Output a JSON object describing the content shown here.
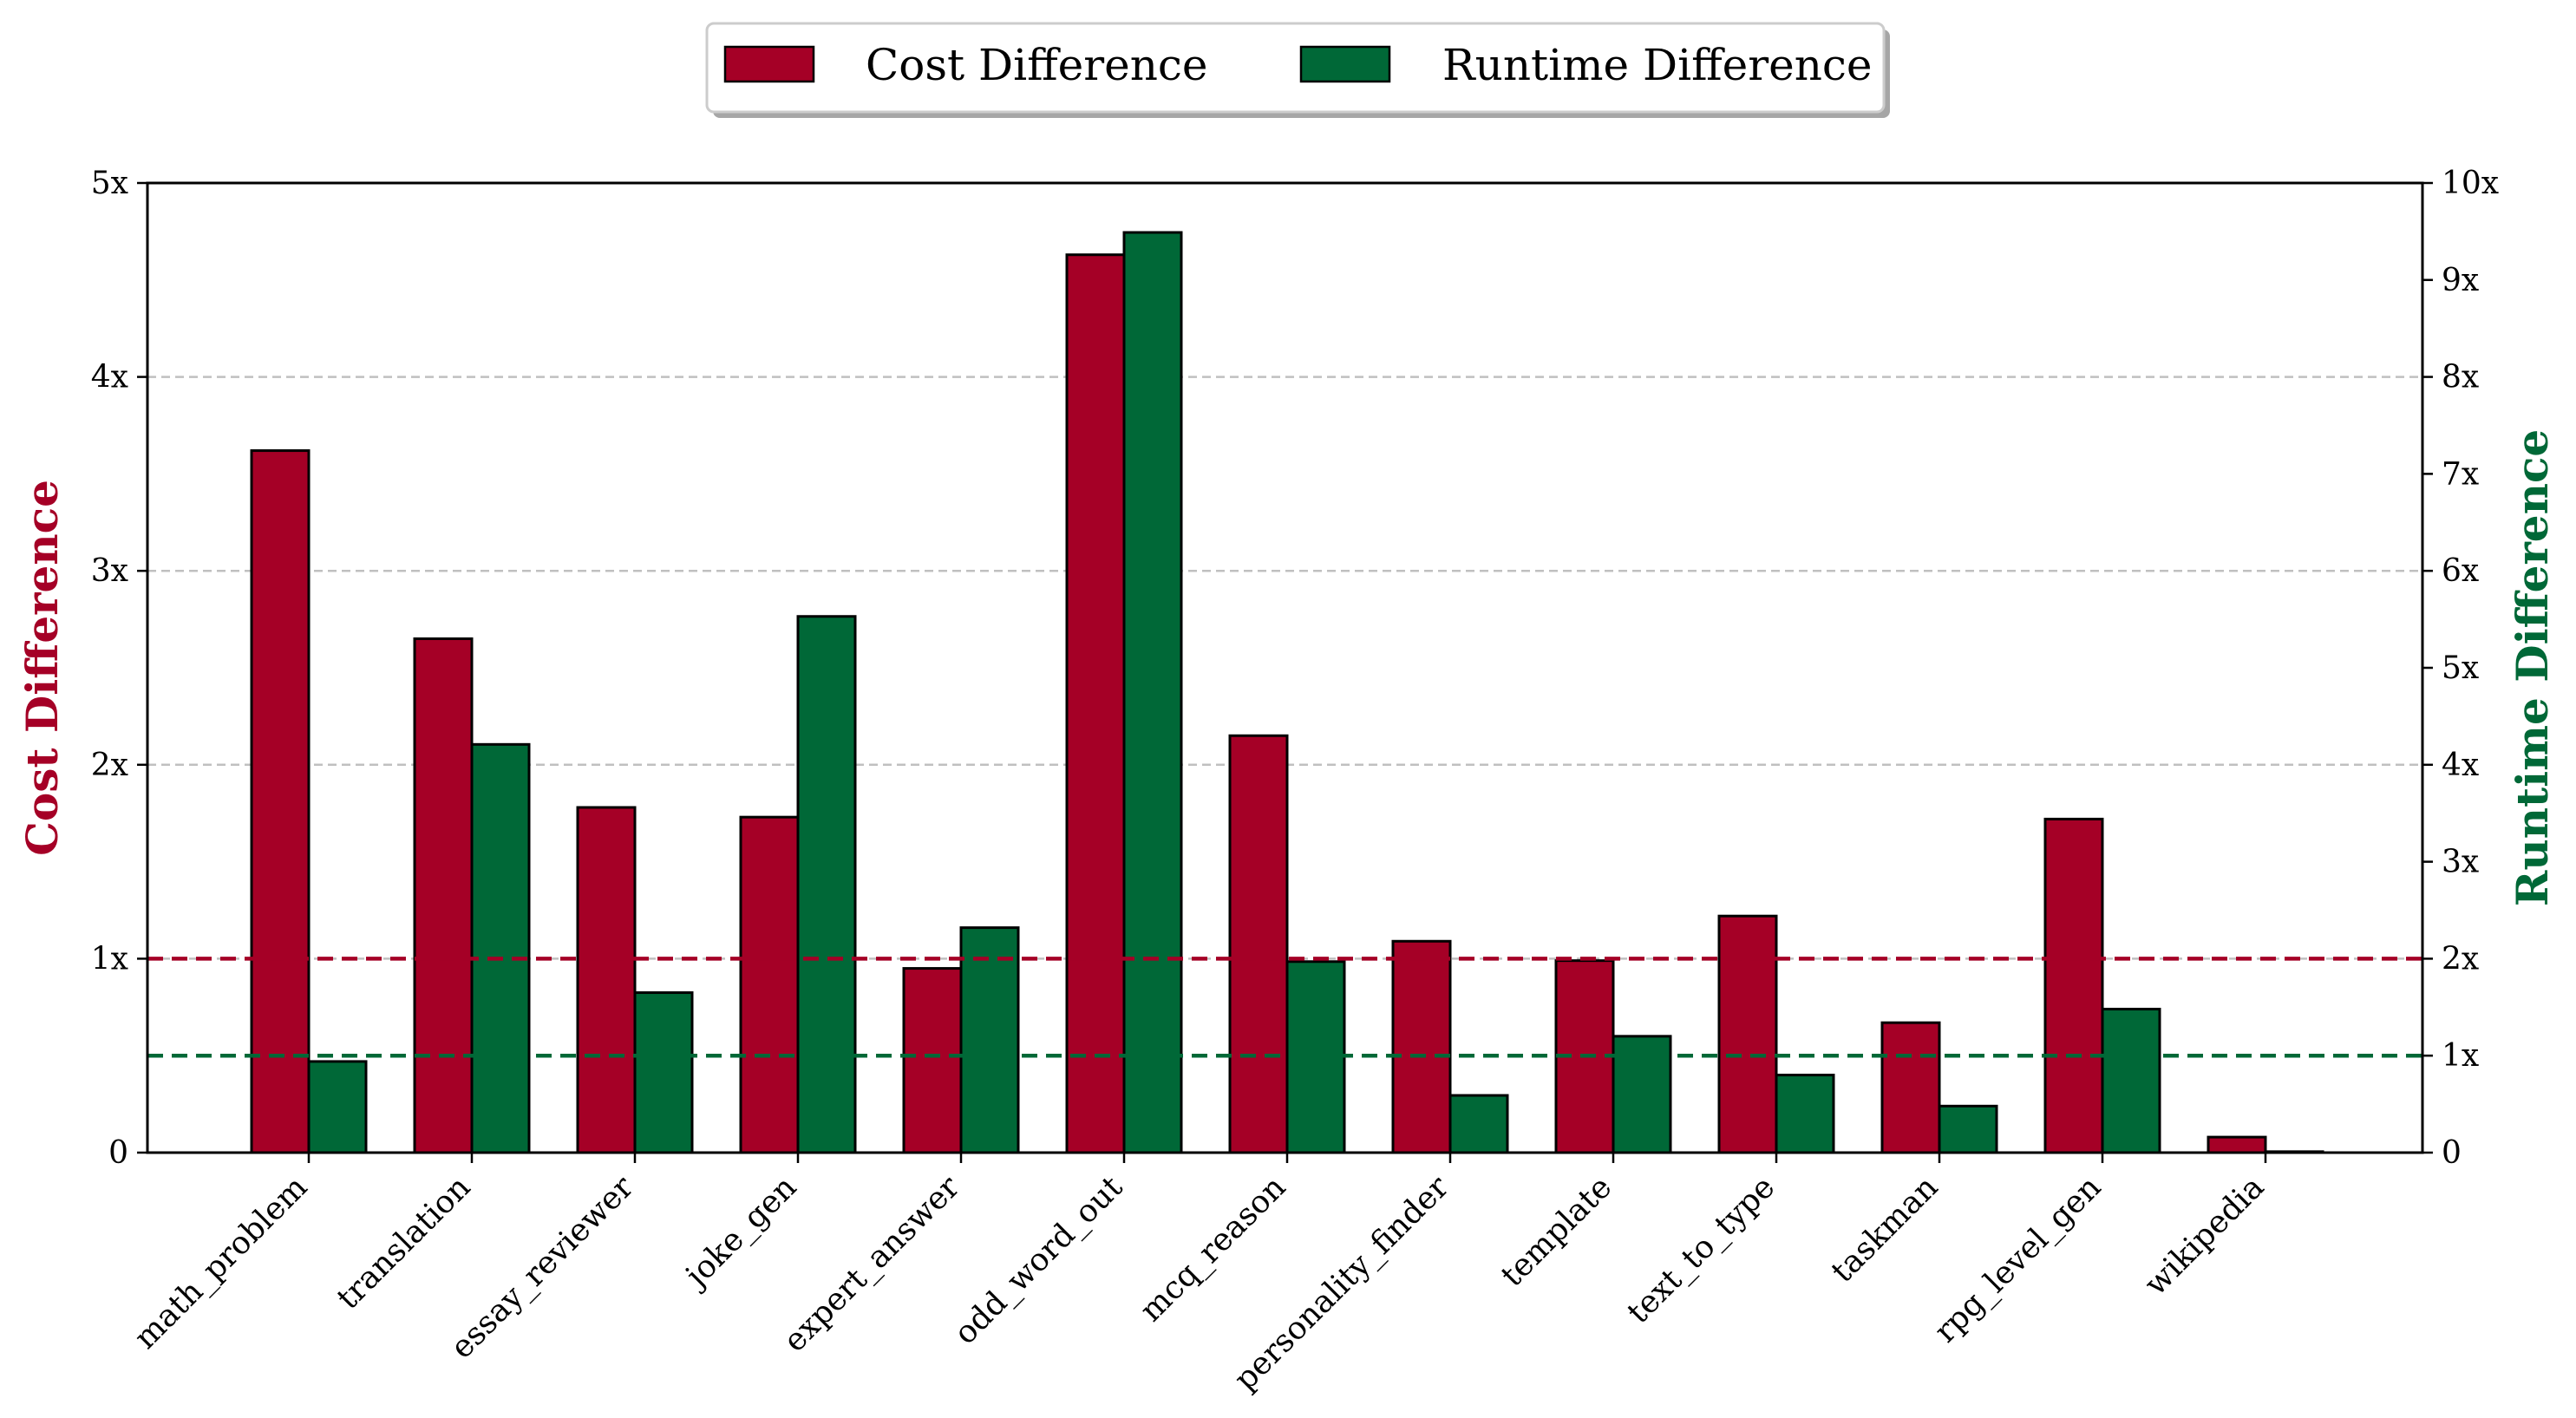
{
  "chart_data": {
    "type": "bar",
    "categories": [
      "math_problem",
      "translation",
      "essay_reviewer",
      "joke_gen",
      "expert_answer",
      "odd_word_out",
      "mcq_reason",
      "personality_finder",
      "template",
      "text_to_type",
      "taskman",
      "rpg_level_gen",
      "wikipedia"
    ],
    "series": [
      {
        "name": "Cost Difference",
        "axis": "left",
        "color": "#a50026",
        "values": [
          3.62,
          2.65,
          1.78,
          1.73,
          0.95,
          4.63,
          2.15,
          1.09,
          0.99,
          1.22,
          0.67,
          1.72,
          0.08
        ]
      },
      {
        "name": "Runtime Difference",
        "axis": "right",
        "color": "#006837",
        "values": [
          0.94,
          4.21,
          1.65,
          5.53,
          2.32,
          9.49,
          1.97,
          0.59,
          1.2,
          0.8,
          0.48,
          1.48,
          0.01
        ]
      }
    ],
    "ylabel": "Cost Difference",
    "y2label": "Runtime Difference",
    "ylim": [
      0,
      5
    ],
    "y2lim": [
      0,
      10
    ],
    "yticks": [
      "0",
      "1x",
      "2x",
      "3x",
      "4x",
      "5x"
    ],
    "y2ticks": [
      "0",
      "1x",
      "2x",
      "3x",
      "4x",
      "5x",
      "6x",
      "7x",
      "8x",
      "9x",
      "10x"
    ],
    "reference_lines": [
      {
        "axis": "left",
        "value": 1,
        "color": "#a50026",
        "style": "dashed"
      },
      {
        "axis": "right",
        "value": 1,
        "color": "#006837",
        "style": "dashed"
      }
    ],
    "grid": "horizontal dashed (left axis)",
    "legend_position": "top-center"
  }
}
